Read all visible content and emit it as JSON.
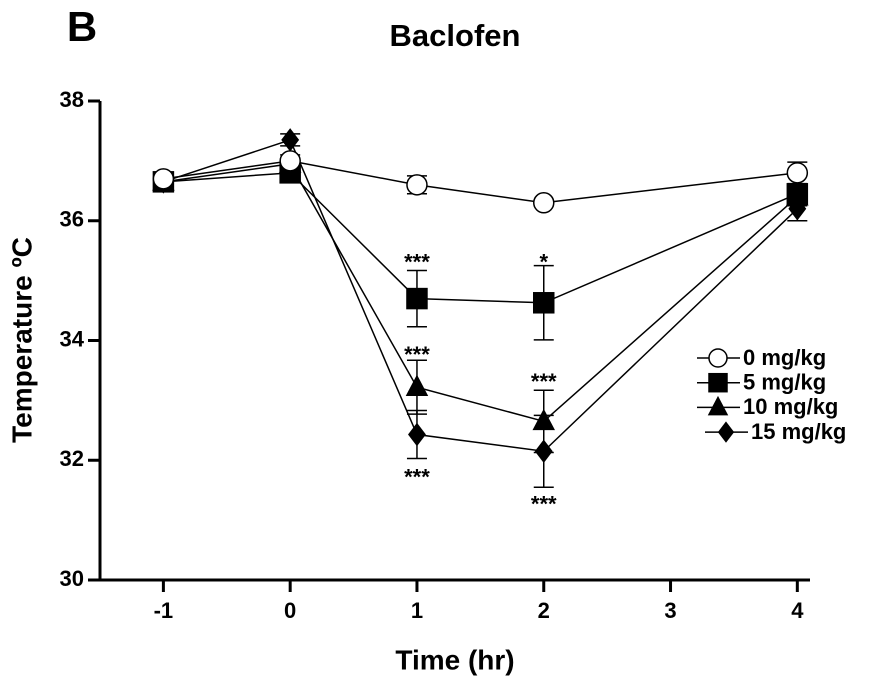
{
  "chart_data": {
    "type": "line",
    "panel_label": "B",
    "title": "Baclofen",
    "x_label": "Time (hr)",
    "y_label": "Temperature ºC",
    "x": [
      -1,
      0,
      1,
      2,
      4
    ],
    "series": [
      {
        "name": "0 mg/kg",
        "color": "#000000",
        "marker": "circle",
        "values": [
          36.7,
          37.0,
          36.6,
          36.3,
          36.8
        ],
        "errors": [
          0.05,
          0.1,
          0.15,
          0.05,
          0.18
        ]
      },
      {
        "name": "5 mg/kg",
        "color": "#000000",
        "marker": "square",
        "values": [
          36.65,
          36.8,
          34.7,
          34.63,
          36.45
        ],
        "errors": [
          0.05,
          0.1,
          0.47,
          0.62,
          0.15
        ]
      },
      {
        "name": "10 mg/kg",
        "color": "#000000",
        "marker": "triangle",
        "values": [
          36.65,
          36.95,
          33.22,
          32.65,
          36.4
        ],
        "errors": [
          0.05,
          0.1,
          0.45,
          0.52,
          0.15
        ]
      },
      {
        "name": "15 mg/kg",
        "color": "#000000",
        "marker": "diamond",
        "values": [
          36.65,
          37.35,
          32.43,
          32.15,
          36.2
        ],
        "errors": [
          0.05,
          0.1,
          0.4,
          0.6,
          0.2
        ]
      }
    ],
    "annotations": [
      {
        "text": "***",
        "x": 1,
        "y": 35.38
      },
      {
        "text": "***",
        "x": 1,
        "y": 33.84
      },
      {
        "text": "***",
        "x": 1,
        "y": 31.79
      },
      {
        "text": "*",
        "x": 2,
        "y": 35.38
      },
      {
        "text": "***",
        "x": 2,
        "y": 33.39
      },
      {
        "text": "***",
        "x": 2,
        "y": 31.34
      }
    ],
    "xlim": [
      -1.5,
      4.1
    ],
    "xticks": [
      -1,
      0,
      1,
      2,
      3,
      4
    ],
    "ylim": [
      30,
      38
    ],
    "yticks": [
      30,
      32,
      34,
      36,
      38
    ],
    "legend": "right"
  }
}
